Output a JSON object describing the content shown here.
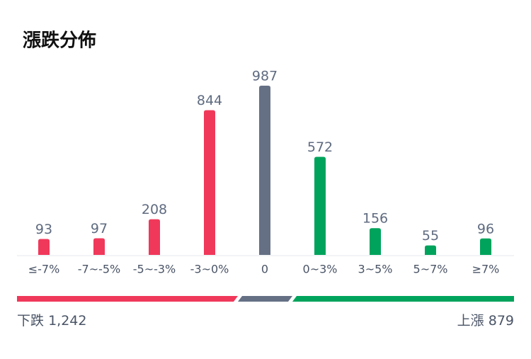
{
  "chart_data": {
    "type": "bar",
    "title": "漲跌分佈",
    "categories": [
      "≤-7%",
      "-7~-5%",
      "-5~-3%",
      "-3~0%",
      "0",
      "0~3%",
      "3~5%",
      "5~7%",
      "≥7%"
    ],
    "values": [
      93,
      97,
      208,
      844,
      987,
      572,
      156,
      55,
      96
    ],
    "colors": [
      "#f0385a",
      "#f0385a",
      "#f0385a",
      "#f0385a",
      "#657085",
      "#00a35c",
      "#00a35c",
      "#00a35c",
      "#00a35c"
    ],
    "summary": {
      "down_label": "下跌",
      "down_count": "1,242",
      "up_label": "上漲",
      "up_count": "879"
    }
  }
}
